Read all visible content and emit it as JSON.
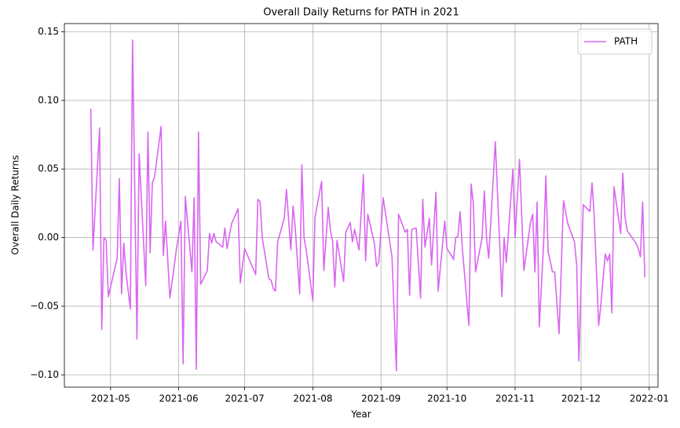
{
  "chart_data": {
    "type": "line",
    "title": "Overall Daily Returns for PATH in 2021",
    "xlabel": "Year",
    "ylabel": "Overall Daily Returns",
    "x": [
      "2021-04-22",
      "2021-04-23",
      "2021-04-26",
      "2021-04-27",
      "2021-04-28",
      "2021-04-29",
      "2021-04-30",
      "2021-05-04",
      "2021-05-05",
      "2021-05-06",
      "2021-05-07",
      "2021-05-08",
      "2021-05-10",
      "2021-05-11",
      "2021-05-13",
      "2021-05-14",
      "2021-05-17",
      "2021-05-18",
      "2021-05-19",
      "2021-05-20",
      "2021-05-21",
      "2021-05-24",
      "2021-05-25",
      "2021-05-26",
      "2021-05-28",
      "2021-05-31",
      "2021-06-02",
      "2021-06-03",
      "2021-06-04",
      "2021-06-07",
      "2021-06-08",
      "2021-06-09",
      "2021-06-10",
      "2021-06-11",
      "2021-06-14",
      "2021-06-15",
      "2021-06-16",
      "2021-06-17",
      "2021-06-18",
      "2021-06-21",
      "2021-06-22",
      "2021-06-23",
      "2021-06-25",
      "2021-06-28",
      "2021-06-29",
      "2021-07-01",
      "2021-07-06",
      "2021-07-07",
      "2021-07-08",
      "2021-07-09",
      "2021-07-12",
      "2021-07-13",
      "2021-07-14",
      "2021-07-15",
      "2021-07-16",
      "2021-07-19",
      "2021-07-20",
      "2021-07-22",
      "2021-07-23",
      "2021-07-24",
      "2021-07-26",
      "2021-07-27",
      "2021-07-28",
      "2021-07-29",
      "2021-08-01",
      "2021-08-02",
      "2021-08-05",
      "2021-08-06",
      "2021-08-08",
      "2021-08-09",
      "2021-08-10",
      "2021-08-11",
      "2021-08-12",
      "2021-08-15",
      "2021-08-16",
      "2021-08-18",
      "2021-08-19",
      "2021-08-20",
      "2021-08-22",
      "2021-08-24",
      "2021-08-25",
      "2021-08-26",
      "2021-08-29",
      "2021-08-30",
      "2021-08-31",
      "2021-09-02",
      "2021-09-06",
      "2021-09-08",
      "2021-09-09",
      "2021-09-12",
      "2021-09-13",
      "2021-09-14",
      "2021-09-15",
      "2021-09-17",
      "2021-09-19",
      "2021-09-20",
      "2021-09-21",
      "2021-09-23",
      "2021-09-24",
      "2021-09-26",
      "2021-09-27",
      "2021-09-30",
      "2021-10-01",
      "2021-10-03",
      "2021-10-04",
      "2021-10-05",
      "2021-10-06",
      "2021-10-07",
      "2021-10-08",
      "2021-10-11",
      "2021-10-12",
      "2021-10-13",
      "2021-10-14",
      "2021-10-17",
      "2021-10-18",
      "2021-10-19",
      "2021-10-20",
      "2021-10-23",
      "2021-10-26",
      "2021-10-27",
      "2021-10-28",
      "2021-10-31",
      "2021-11-01",
      "2021-11-03",
      "2021-11-05",
      "2021-11-08",
      "2021-11-09",
      "2021-11-10",
      "2021-11-11",
      "2021-11-12",
      "2021-11-14",
      "2021-11-15",
      "2021-11-16",
      "2021-11-18",
      "2021-11-19",
      "2021-11-21",
      "2021-11-23",
      "2021-11-25",
      "2021-11-28",
      "2021-11-29",
      "2021-11-30",
      "2021-12-02",
      "2021-12-05",
      "2021-12-06",
      "2021-12-07",
      "2021-12-09",
      "2021-12-10",
      "2021-12-12",
      "2021-12-13",
      "2021-12-14",
      "2021-12-15",
      "2021-12-16",
      "2021-12-19",
      "2021-12-20",
      "2021-12-21",
      "2021-12-22",
      "2021-12-26",
      "2021-12-27",
      "2021-12-28",
      "2021-12-29",
      "2021-12-30"
    ],
    "series": [
      {
        "name": "PATH",
        "color": "#d966f0",
        "values": [
          0.094,
          -0.009,
          0.08,
          -0.067,
          0.0,
          -0.002,
          -0.043,
          -0.015,
          0.043,
          -0.041,
          -0.004,
          -0.025,
          -0.052,
          0.144,
          -0.074,
          0.061,
          -0.035,
          0.077,
          -0.011,
          0.04,
          0.044,
          0.081,
          -0.013,
          0.012,
          -0.044,
          -0.008,
          0.012,
          -0.092,
          0.03,
          -0.025,
          0.029,
          -0.096,
          0.077,
          -0.034,
          -0.024,
          0.003,
          -0.004,
          0.003,
          -0.003,
          -0.007,
          0.007,
          -0.008,
          0.01,
          0.021,
          -0.033,
          -0.008,
          -0.027,
          0.028,
          0.026,
          0.0,
          -0.03,
          -0.031,
          -0.037,
          -0.039,
          -0.003,
          0.014,
          0.035,
          -0.009,
          0.023,
          0.007,
          -0.041,
          0.053,
          0.0,
          -0.009,
          -0.046,
          0.015,
          0.041,
          -0.024,
          0.022,
          0.005,
          -0.003,
          -0.036,
          -0.002,
          -0.032,
          0.004,
          0.011,
          -0.003,
          0.006,
          -0.009,
          0.046,
          -0.017,
          0.017,
          -0.004,
          -0.021,
          -0.018,
          0.029,
          -0.014,
          -0.097,
          0.017,
          0.004,
          0.006,
          -0.042,
          0.006,
          0.007,
          -0.044,
          0.028,
          -0.007,
          0.014,
          -0.02,
          0.033,
          -0.039,
          0.012,
          -0.008,
          -0.013,
          -0.016,
          0.0,
          0.001,
          0.019,
          -0.008,
          -0.064,
          0.039,
          0.025,
          -0.025,
          0.0,
          0.034,
          0.0,
          -0.015,
          0.07,
          -0.043,
          0.0,
          -0.018,
          0.05,
          0.0,
          0.057,
          -0.024,
          0.011,
          0.017,
          -0.025,
          0.026,
          -0.065,
          -0.003,
          0.045,
          -0.01,
          -0.025,
          -0.025,
          -0.07,
          0.027,
          0.01,
          -0.003,
          -0.02,
          -0.09,
          0.024,
          0.019,
          0.04,
          0.015,
          -0.064,
          -0.049,
          -0.012,
          -0.017,
          -0.012,
          -0.055,
          0.037,
          0.003,
          0.047,
          0.015,
          0.005,
          -0.004,
          -0.008,
          -0.014,
          0.026,
          -0.029
        ]
      }
    ],
    "xlim": [
      "2021-04-10",
      "2022-01-05"
    ],
    "xticks": [
      {
        "value": "2021-05-01",
        "label": "2021-05"
      },
      {
        "value": "2021-06-01",
        "label": "2021-06"
      },
      {
        "value": "2021-07-01",
        "label": "2021-07"
      },
      {
        "value": "2021-08-01",
        "label": "2021-08"
      },
      {
        "value": "2021-09-01",
        "label": "2021-09"
      },
      {
        "value": "2021-10-01",
        "label": "2021-10"
      },
      {
        "value": "2021-11-01",
        "label": "2021-11"
      },
      {
        "value": "2021-12-01",
        "label": "2021-12"
      },
      {
        "value": "2022-01-01",
        "label": "2022-01"
      }
    ],
    "ylim": [
      -0.109,
      0.156
    ],
    "yticks": [
      {
        "value": -0.1,
        "label": "−0.10"
      },
      {
        "value": -0.05,
        "label": "−0.05"
      },
      {
        "value": 0,
        "label": "0.00"
      },
      0.05,
      {
        "value": 0.1,
        "label": "0.10"
      },
      0.15
    ],
    "grid": true,
    "legend": "upper right"
  }
}
